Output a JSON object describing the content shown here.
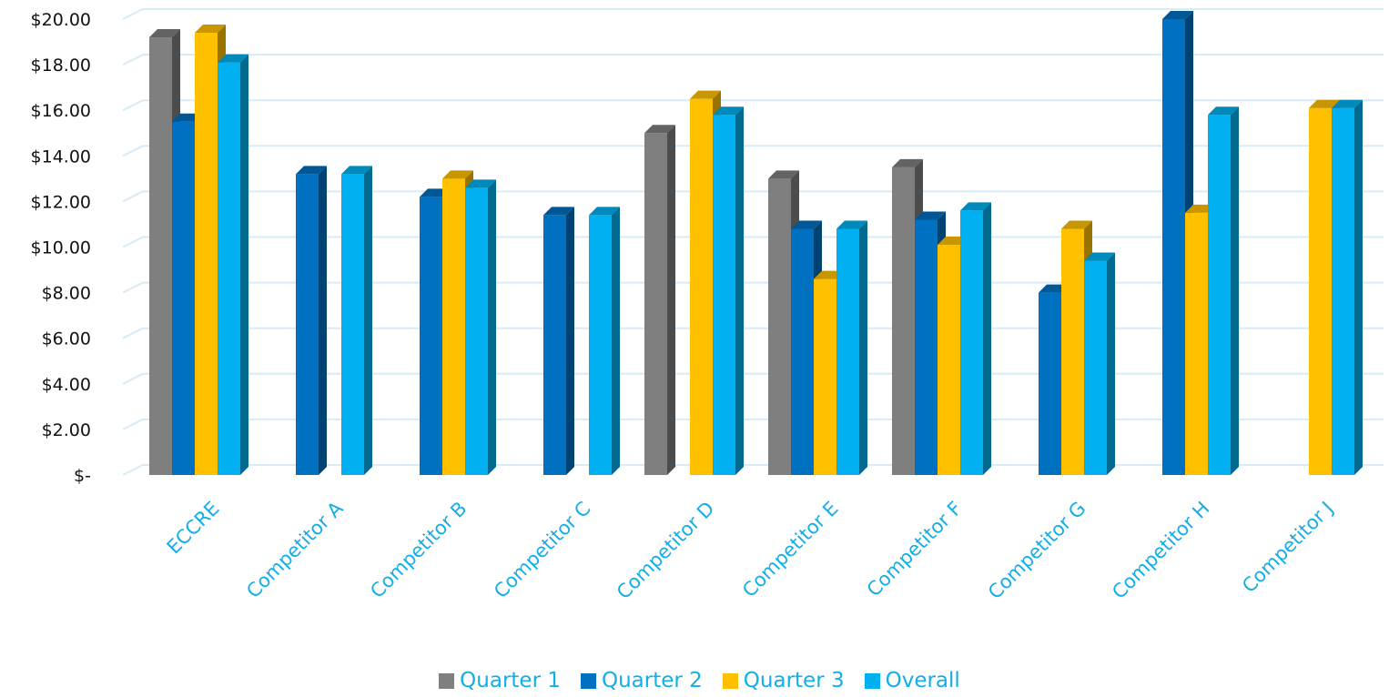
{
  "chart_data": {
    "type": "bar",
    "title": "",
    "xlabel": "",
    "ylabel": "",
    "categories": [
      "ECCRE",
      "Competitor A",
      "Competitor B",
      "Competitor C",
      "Competitor D",
      "Competitor E",
      "Competitor F",
      "Competitor G",
      "Competitor H",
      "Competitor J"
    ],
    "series": [
      {
        "name": "Quarter 1",
        "color": "#7f7f7f",
        "values": [
          19.2,
          null,
          null,
          null,
          15.0,
          13.0,
          13.5,
          null,
          null,
          null
        ]
      },
      {
        "name": "Quarter 2",
        "color": "#0070c0",
        "values": [
          15.5,
          13.2,
          12.2,
          11.4,
          null,
          10.8,
          11.2,
          8.0,
          20.0,
          null
        ]
      },
      {
        "name": "Quarter 3",
        "color": "#ffc000",
        "values": [
          19.4,
          null,
          13.0,
          null,
          16.5,
          8.6,
          10.1,
          10.8,
          11.5,
          16.1
        ]
      },
      {
        "name": "Overall",
        "color": "#00b0f0",
        "values": [
          18.1,
          13.2,
          12.6,
          11.4,
          15.8,
          10.8,
          11.6,
          9.4,
          15.8,
          16.1
        ]
      }
    ],
    "ylim": [
      0,
      20
    ],
    "yticks": [
      "$-",
      "$2.00",
      "$4.00",
      "$6.00",
      "$8.00",
      "$10.00",
      "$12.00",
      "$14.00",
      "$16.00",
      "$18.00",
      "$20.00"
    ],
    "grid": true,
    "legend_position": "bottom",
    "style": "3d-clustered-column"
  }
}
